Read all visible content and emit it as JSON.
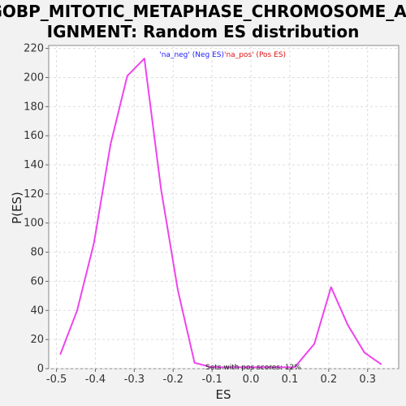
{
  "chart_data": {
    "type": "line",
    "title_lines": [
      "GOBP_MITOTIC_METAPHASE_CHROMOSOME_AL",
      "IGNMENT: Random ES distribution"
    ],
    "xlabel": "ES",
    "ylabel": "P(ES)",
    "xlim": [
      -0.52,
      0.38
    ],
    "ylim": [
      0,
      222
    ],
    "x_ticks": [
      -0.5,
      -0.4,
      -0.3,
      -0.2,
      -0.1,
      0.0,
      0.1,
      0.2,
      0.3
    ],
    "x_tick_labels": [
      "-0.5",
      "-0.4",
      "-0.3",
      "-0.2",
      "-0.1",
      "0.0",
      "0.1",
      "0.2",
      "0.3"
    ],
    "y_ticks": [
      0,
      20,
      40,
      60,
      80,
      100,
      120,
      140,
      160,
      180,
      200,
      220
    ],
    "y_tick_labels": [
      "0",
      "20",
      "40",
      "60",
      "80",
      "100",
      "120",
      "140",
      "160",
      "180",
      "200",
      "220"
    ],
    "grid": true,
    "legend": [
      {
        "text": "'na_neg' (Neg ES)",
        "color": "#1a1aff"
      },
      {
        "text": "'na_pos' (Pos ES)",
        "color": "#e01010"
      }
    ],
    "annotation": "Sets with pos scores: 12%",
    "series": [
      {
        "color": "#ee44ee",
        "x": [
          -0.49,
          -0.447,
          -0.404,
          -0.361,
          -0.318,
          -0.274,
          -0.231,
          -0.188,
          -0.145,
          -0.102,
          -0.059,
          -0.016,
          0.027,
          0.07,
          0.113,
          0.163,
          0.206,
          0.249,
          0.292,
          0.335
        ],
        "y": [
          10,
          40,
          86,
          154,
          201,
          213,
          123,
          54,
          4,
          1,
          1,
          1,
          1,
          1,
          1,
          17,
          56,
          30,
          11,
          3
        ]
      }
    ]
  }
}
